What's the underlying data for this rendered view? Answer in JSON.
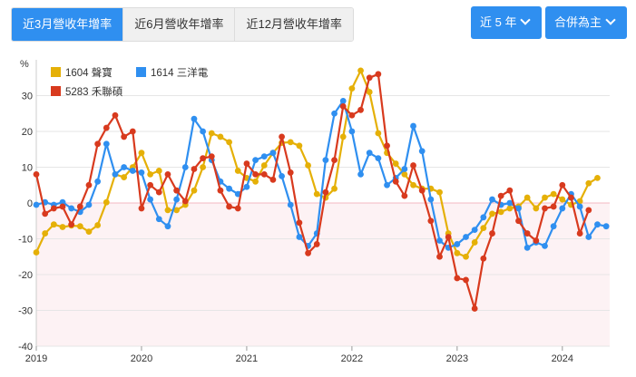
{
  "tabs": [
    {
      "label": "近3月營收年增率",
      "active": true
    },
    {
      "label": "近6月營收年增率",
      "active": false
    },
    {
      "label": "近12月營收年增率",
      "active": false
    }
  ],
  "period_dropdown": {
    "label": "近 5 年",
    "icon": "chevron-down-icon"
  },
  "scope_dropdown": {
    "label": "合併為主",
    "icon": "chevron-down-icon"
  },
  "chart_data": {
    "type": "line",
    "ylabel": "%",
    "ylim": [
      -40,
      40
    ],
    "yticks": [
      -40,
      -30,
      -20,
      -10,
      0,
      10,
      20,
      30
    ],
    "xlim": [
      2019.0,
      2024.45
    ],
    "xticks": [
      {
        "value": 2019,
        "label": "2019"
      },
      {
        "value": 2020,
        "label": "2020"
      },
      {
        "value": 2021,
        "label": "2021"
      },
      {
        "value": 2022,
        "label": "2022"
      },
      {
        "value": 2023,
        "label": "2023"
      },
      {
        "value": 2024,
        "label": "2024"
      }
    ],
    "legend_position": "top-left",
    "zero_band_color": "#fdf2f4",
    "zero_line_color": "#f4b8c2",
    "start": "2019-01",
    "series": [
      {
        "name": "1604 聲寶",
        "color": "#e5b007",
        "values": [
          -13.8,
          -8.5,
          -6,
          -6.7,
          -6.3,
          -6.5,
          -8,
          -6.2,
          0.2,
          8,
          7.2,
          10,
          14,
          8,
          9,
          -2,
          -2,
          -0.5,
          3.5,
          10,
          19.5,
          18.5,
          17,
          9,
          7,
          6,
          10.5,
          14,
          16.8,
          17,
          16,
          10.5,
          2.5,
          1.5,
          4,
          18.5,
          32,
          37,
          31,
          19.5,
          14,
          11,
          8,
          5,
          4,
          4,
          3,
          -8.5,
          -14,
          -15,
          -11,
          -7,
          -3,
          -2.5,
          -1.5,
          -1,
          1.5,
          -1.5,
          1.5,
          2.5,
          1,
          -0.5,
          0.5,
          5.5,
          7
        ]
      },
      {
        "name": "1614 三洋電",
        "color": "#2f8ff0",
        "values": [
          -0.5,
          0.2,
          -0.5,
          0.2,
          -1.5,
          -2.5,
          -0.5,
          6,
          16.5,
          8,
          10,
          9,
          8.5,
          1,
          -4.5,
          -6.5,
          1,
          10,
          23.5,
          20,
          12,
          6,
          4,
          2.5,
          4.5,
          12,
          13,
          14,
          7.5,
          -0.5,
          -9.5,
          -12,
          -8.5,
          12,
          25,
          28.5,
          20,
          8,
          14,
          12.5,
          5,
          7,
          9.5,
          21.5,
          14.5,
          1,
          -10.5,
          -12.5,
          -11.5,
          -9.5,
          -7.5,
          -4,
          1,
          -0.5,
          0,
          -1.5,
          -12.5,
          -11,
          -12,
          -6.5,
          -1.5,
          2.5,
          -1,
          -9.5,
          -6,
          -6.5
        ]
      },
      {
        "name": "5283 禾聯碩",
        "color": "#d83a1e",
        "values": [
          8,
          -3,
          -1.5,
          -1,
          -6,
          -1,
          5,
          16.5,
          21,
          24.5,
          18.5,
          20,
          -1.5,
          5,
          3,
          8,
          3.5,
          0.5,
          9.5,
          12.5,
          13,
          3.5,
          -1,
          -1.5,
          11,
          8,
          8,
          6.5,
          18.5,
          8.5,
          -5.5,
          -14,
          -11.5,
          3,
          12,
          27,
          24.5,
          26,
          35,
          36,
          16,
          6,
          2,
          10.5,
          3.5,
          -5,
          -15,
          -9.5,
          -21,
          -21.5,
          -29.5,
          -15.5,
          -8.5,
          2,
          3.5,
          -5,
          -8.5,
          -10.5,
          -1.5,
          -1,
          5,
          1.5,
          -8.5,
          -2
        ]
      }
    ]
  }
}
